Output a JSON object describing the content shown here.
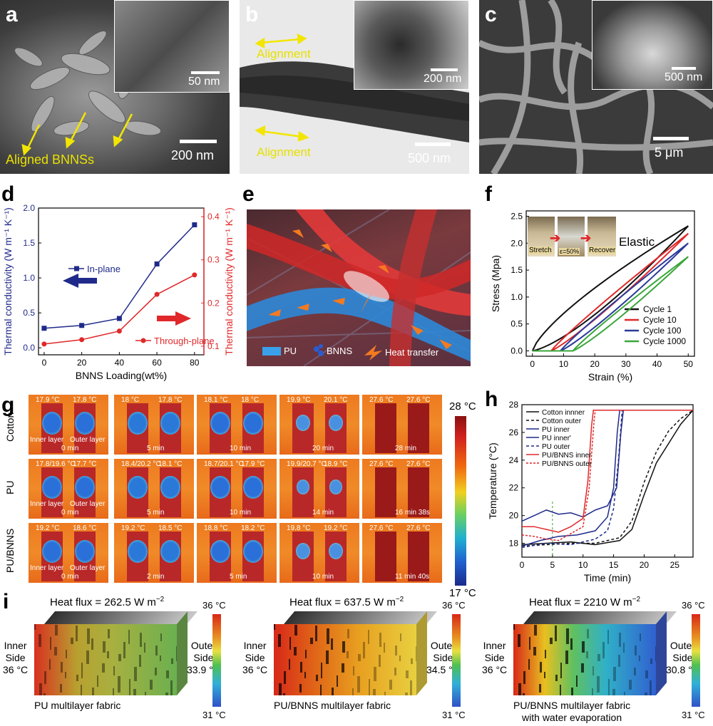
{
  "panels": {
    "a": {
      "letter": "a",
      "scale_main": "200 nm",
      "scale_inset": "50 nm",
      "label": "Aligned BNNSs"
    },
    "b": {
      "letter": "b",
      "scale_main": "500 nm",
      "scale_inset": "200 nm",
      "label_top": "Alignment",
      "label_bottom": "Alignment"
    },
    "c": {
      "letter": "c",
      "scale_main": "5 μm",
      "scale_inset": "500 nm"
    },
    "d": {
      "letter": "d"
    },
    "e": {
      "letter": "e",
      "legend": [
        "PU",
        "BNNS",
        "Heat transfer"
      ]
    },
    "f": {
      "letter": "f",
      "inset_labels": [
        "Stretch",
        "ε=50%",
        "Recover"
      ],
      "note": "Elastic"
    },
    "g": {
      "letter": "g",
      "cbar_top": "28 °C",
      "cbar_bottom": "17 °C",
      "rows": [
        {
          "name": "Cotton",
          "cells": [
            {
              "l": "17.9 °C",
              "r": "17.8 °C",
              "time": "0 min",
              "inner": "Inner layer",
              "outer": "Outer layer"
            },
            {
              "l": "18 °C",
              "r": "17.8 °C",
              "time": "5 min"
            },
            {
              "l": "18.1 °C",
              "r": "18 °C",
              "time": "10 min"
            },
            {
              "l": "19.9 °C",
              "r": "20.1 °C",
              "time": "20 min"
            },
            {
              "l": "27.6 °C",
              "r": "27.6 °C",
              "time": "28 min"
            }
          ]
        },
        {
          "name": "PU",
          "cells": [
            {
              "l": "17.8/19.6 °C",
              "r": "17.7 °C",
              "time": "0 min",
              "inner": "Inner layer",
              "outer": "Outer layer"
            },
            {
              "l": "18.4/20.2 °C",
              "r": "18.1 °C",
              "time": "5 min"
            },
            {
              "l": "18.7/20.1 °C",
              "r": "17.9 °C",
              "time": "10 min"
            },
            {
              "l": "19.9/20.7 °C",
              "r": "18.9 °C",
              "time": "14 min"
            },
            {
              "l": "27.6 °C",
              "r": "27.6 °C",
              "time": "16 min 38s"
            }
          ]
        },
        {
          "name": "PU/BNNS",
          "cells": [
            {
              "l": "19.2 °C",
              "r": "18.6 °C",
              "time": "0 min",
              "inner": "Inner layer",
              "outer": "Outer layer"
            },
            {
              "l": "19.2 °C",
              "r": "18.5 °C",
              "time": "2 min"
            },
            {
              "l": "18.8 °C",
              "r": "18.2 °C",
              "time": "5 min"
            },
            {
              "l": "19.8 °C",
              "r": "19.2 °C",
              "time": "10 min"
            },
            {
              "l": "27.6 °C",
              "r": "27.6 °C",
              "time": "11 min 40s"
            }
          ]
        }
      ]
    },
    "h": {
      "letter": "h"
    },
    "i": {
      "letter": "i",
      "blocks": [
        {
          "flux": "Heat flux = 262.5 W m",
          "sup": "−2",
          "inner": [
            "Inner",
            "Side",
            "36 °C"
          ],
          "outer": [
            "Outer",
            "Side",
            "33.9 °C"
          ],
          "caption": [
            "PU multilayer fabric"
          ],
          "cb_top": "36 °C",
          "cb_bottom": "31 °C"
        },
        {
          "flux": "Heat flux = 637.5 W m",
          "sup": "−2",
          "inner": [
            "Inner",
            "Side",
            "36 °C"
          ],
          "outer": [
            "Outer",
            "Side",
            "34.5 °C"
          ],
          "caption": [
            "PU/BNNS multilayer fabric"
          ],
          "cb_top": "36 °C",
          "cb_bottom": "31 °C"
        },
        {
          "flux": "Heat flux = 2210 W m",
          "sup": "−2",
          "inner": [
            "Inner",
            "Side",
            "36 °C"
          ],
          "outer": [
            "Outer",
            "Side",
            "30.8 °C"
          ],
          "caption": [
            "PU/BNNS multilayer fabric",
            "with water evaporation"
          ],
          "cb_top": "36 °C",
          "cb_bottom": "31 °C"
        }
      ]
    }
  },
  "chart_data": [
    {
      "type": "line",
      "panel": "d",
      "x": [
        0,
        20,
        40,
        60,
        80
      ],
      "xlabel": "BNNS Loading(wt%)",
      "ylabel": "Thermal conductivity (W m⁻¹ K⁻¹)",
      "y2label": "Thermal conductivity (W m⁻¹ K⁻¹)",
      "xlim": [
        -3,
        85
      ],
      "ylim": [
        -0.1,
        2.0
      ],
      "y2lim": [
        0.08,
        0.42
      ],
      "xticks": [
        0,
        20,
        40,
        60,
        80
      ],
      "yticks": [
        0.0,
        0.5,
        1.0,
        1.5,
        2.0
      ],
      "y2ticks": [
        0.1,
        0.2,
        0.3,
        0.4
      ],
      "series": [
        {
          "name": "In-plane",
          "axis": "left",
          "color": "#1f2a8a",
          "values": [
            0.28,
            0.32,
            0.42,
            1.2,
            1.76
          ]
        },
        {
          "name": "Through-plane",
          "axis": "right",
          "color": "#e0282a",
          "values": [
            0.105,
            0.115,
            0.135,
            0.22,
            0.265
          ]
        }
      ]
    },
    {
      "type": "line",
      "panel": "f",
      "xlabel": "Strain (%)",
      "ylabel": "Stress (Mpa)",
      "xlim": [
        -2,
        52
      ],
      "ylim": [
        -0.1,
        2.6
      ],
      "xticks": [
        0,
        10,
        20,
        30,
        40,
        50
      ],
      "yticks": [
        0.0,
        0.5,
        1.0,
        1.5,
        2.0,
        2.5
      ],
      "series": [
        {
          "name": "Cycle 1",
          "color": "#111111",
          "max": 2.32,
          "start": 0
        },
        {
          "name": "Cycle 10",
          "color": "#e0282a",
          "max": 2.18,
          "start": 6
        },
        {
          "name": "Cycle 100",
          "color": "#2b3a9a",
          "max": 2.0,
          "start": 9
        },
        {
          "name": "Cycle 1000",
          "color": "#3aa63a",
          "max": 1.75,
          "start": 13
        }
      ]
    },
    {
      "type": "line",
      "panel": "h",
      "xlabel": "Time (min)",
      "ylabel": "Temperature (°C)",
      "xlim": [
        0,
        28
      ],
      "ylim": [
        17,
        28
      ],
      "xticks": [
        0,
        5,
        10,
        15,
        20,
        25
      ],
      "yticks": [
        18,
        20,
        22,
        24,
        26,
        28
      ],
      "series": [
        {
          "name": "Cotton innner",
          "color": "#111111",
          "dash": "",
          "x": [
            0,
            4,
            8,
            12,
            16,
            18,
            20,
            22,
            24,
            26,
            28
          ],
          "y": [
            17.9,
            18.0,
            18.1,
            17.9,
            18.2,
            19.0,
            21.5,
            23.8,
            25.2,
            26.6,
            27.6
          ]
        },
        {
          "name": "Cotton outer",
          "color": "#111111",
          "dash": "4,3",
          "x": [
            0,
            4,
            8,
            12,
            16,
            18,
            20,
            22,
            24,
            26,
            28
          ],
          "y": [
            17.8,
            17.9,
            18.0,
            18.0,
            18.4,
            19.6,
            22.4,
            24.6,
            26.1,
            27.0,
            27.6
          ]
        },
        {
          "name": "PU inner",
          "color": "#1f2a8a",
          "dash": "",
          "x": [
            0,
            2,
            4,
            6,
            8,
            10,
            12,
            14,
            15.5,
            16.2,
            16.6,
            28
          ],
          "y": [
            19.6,
            20.0,
            20.4,
            20.1,
            20.2,
            19.9,
            20.4,
            20.7,
            22.0,
            26.0,
            27.6,
            27.6
          ]
        },
        {
          "name": "PU inner'",
          "color": "#1f2a8a",
          "dash": "",
          "x": [
            0,
            3,
            6,
            9,
            12,
            14,
            15,
            15.6,
            16.0,
            28
          ],
          "y": [
            17.8,
            18.2,
            18.5,
            18.6,
            18.9,
            19.9,
            22.0,
            26.0,
            27.6,
            27.6
          ]
        },
        {
          "name": "PU outer",
          "color": "#1f2a8a",
          "dash": "4,3",
          "x": [
            0,
            4,
            8,
            12,
            14,
            15,
            15.8,
            16.4,
            28
          ],
          "y": [
            17.7,
            18.0,
            17.9,
            18.3,
            18.9,
            20.5,
            24.0,
            27.6,
            27.6
          ]
        },
        {
          "name": "PU/BNNS inner",
          "color": "#e0282a",
          "dash": "",
          "x": [
            0,
            2,
            4,
            6,
            8,
            10,
            10.8,
            11.4,
            11.7,
            28
          ],
          "y": [
            19.2,
            19.2,
            19.0,
            18.8,
            19.2,
            19.8,
            22.5,
            26.5,
            27.6,
            27.6
          ]
        },
        {
          "name": "PU/BNNS outer",
          "color": "#e0282a",
          "dash": "3,2",
          "x": [
            0,
            2,
            4,
            6,
            8,
            10,
            11.0,
            11.8,
            12.0,
            28
          ],
          "y": [
            18.6,
            18.5,
            18.3,
            18.2,
            18.7,
            19.2,
            22.0,
            26.8,
            27.6,
            27.6
          ]
        }
      ]
    }
  ]
}
